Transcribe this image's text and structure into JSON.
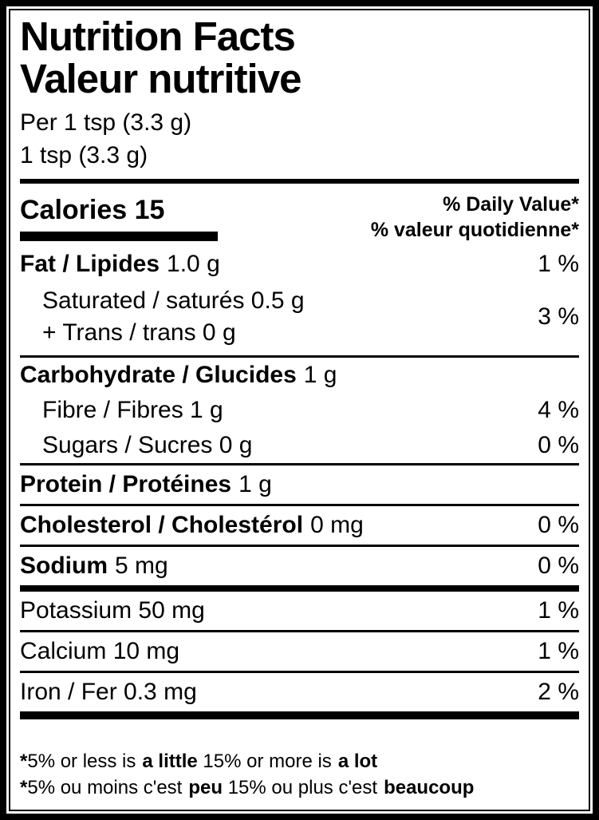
{
  "colors": {
    "ink": "#000000",
    "paper": "#ffffff"
  },
  "header": {
    "title_en": "Nutrition Facts",
    "title_fr": "Valeur nutritive",
    "serving_per": "Per 1 tsp (3.3 g)",
    "serving_size": "1 tsp (3.3 g)"
  },
  "calories": {
    "label": "Calories",
    "value": "15"
  },
  "daily_value_header": {
    "en": "% Daily Value*",
    "fr": "% valeur quotidienne*"
  },
  "rows": {
    "fat": {
      "name": "Fat / Lipides",
      "value": "1.0 g",
      "pct": "1 %"
    },
    "saturated": {
      "line1": "Saturated / saturés 0.5 g",
      "line2": "+ Trans / trans 0 g",
      "pct": "3 %"
    },
    "carbohydrate": {
      "name": "Carbohydrate / Glucides",
      "value": "1 g"
    },
    "fibre": {
      "name": "Fibre / Fibres 1 g",
      "pct": "4 %"
    },
    "sugars": {
      "name": "Sugars / Sucres 0 g",
      "pct": "0 %"
    },
    "protein": {
      "name": "Protein / Protéines",
      "value": "1 g"
    },
    "cholesterol": {
      "name": "Cholesterol / Cholestérol",
      "value": "0 mg",
      "pct": "0 %"
    },
    "sodium": {
      "name": "Sodium",
      "value": "5 mg",
      "pct": "0 %"
    },
    "potassium": {
      "name": "Potassium 50 mg",
      "pct": "1 %"
    },
    "calcium": {
      "name": "Calcium 10 mg",
      "pct": "1 %"
    },
    "iron": {
      "name": "Iron / Fer 0.3 mg",
      "pct": "2 %"
    }
  },
  "footnotes": {
    "en": {
      "star": "*",
      "p1": "5% or less is",
      "b1": "a little",
      "p2": " 15% or more is",
      "b2": "a lot"
    },
    "fr": {
      "star": "*",
      "p1": "5% ou moins c'est",
      "b1": "peu",
      "p2": " 15% ou plus c'est",
      "b2": "beaucoup"
    }
  }
}
